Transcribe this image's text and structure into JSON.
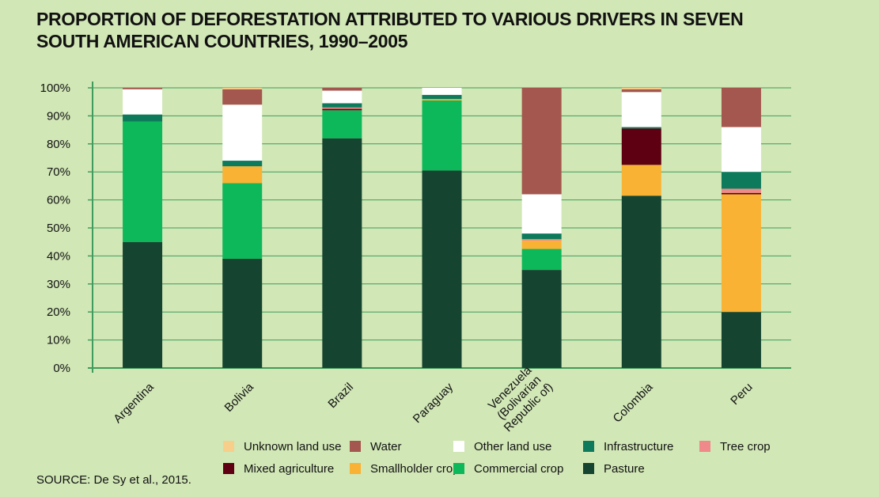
{
  "chart_data": {
    "type": "stacked-bar",
    "title": "PROPORTION OF DEFORESTATION ATTRIBUTED TO VARIOUS DRIVERS IN SEVEN SOUTH AMERICAN COUNTRIES, 1990–2005",
    "source": "SOURCE: De Sy et al., 2015.",
    "categories": [
      "Argentina",
      "Bolivia",
      "Brazil",
      "Paraguay",
      "Venezuela (Bolivarian Republic of)",
      "Colombia",
      "Peru"
    ],
    "series": [
      {
        "name": "Pasture",
        "color": "#154430",
        "values": [
          45,
          39,
          82,
          70.5,
          35,
          61.5,
          20
        ]
      },
      {
        "name": "Commercial crop",
        "color": "#0db85a",
        "values": [
          43,
          27,
          10,
          25,
          7.5,
          0,
          0
        ]
      },
      {
        "name": "Smallholder crop",
        "color": "#f9b233",
        "values": [
          0,
          6,
          0,
          0.5,
          3,
          11,
          42
        ]
      },
      {
        "name": "Mixed agriculture",
        "color": "#5e0012",
        "values": [
          0,
          0,
          0.5,
          0,
          0,
          13,
          0.5
        ]
      },
      {
        "name": "Tree crop",
        "color": "#f0898a",
        "values": [
          0,
          0,
          0.5,
          0,
          0.5,
          0,
          1.5
        ]
      },
      {
        "name": "Infrastructure",
        "color": "#0e7a5c",
        "values": [
          2.5,
          2,
          1.5,
          1.5,
          2,
          0.5,
          6
        ]
      },
      {
        "name": "Other land use",
        "color": "#ffffff",
        "values": [
          9,
          20,
          4.5,
          2.5,
          14,
          12.5,
          16
        ]
      },
      {
        "name": "Water",
        "color": "#a4574e",
        "values": [
          0.5,
          5.5,
          1,
          0,
          38,
          1,
          14
        ]
      },
      {
        "name": "Unknown land use",
        "color": "#f7cf8a",
        "values": [
          0,
          0.5,
          0,
          0,
          0,
          0.5,
          0
        ]
      }
    ],
    "ylim": [
      0,
      100
    ],
    "yticks": [
      {
        "value": 0,
        "label": "0%"
      },
      {
        "value": 10,
        "label": "10%"
      },
      {
        "value": 20,
        "label": "20%"
      },
      {
        "value": 30,
        "label": "30%"
      },
      {
        "value": 40,
        "label": "40%"
      },
      {
        "value": 50,
        "label": "50%"
      },
      {
        "value": 60,
        "label": "60%"
      },
      {
        "value": 70,
        "label": "70%"
      },
      {
        "value": 80,
        "label": "80%"
      },
      {
        "value": 90,
        "label": "90%"
      },
      {
        "value": 100,
        "label": "100%"
      }
    ],
    "grid": true,
    "legend_order": [
      8,
      7,
      6,
      5,
      4,
      3,
      2,
      1,
      0
    ]
  }
}
